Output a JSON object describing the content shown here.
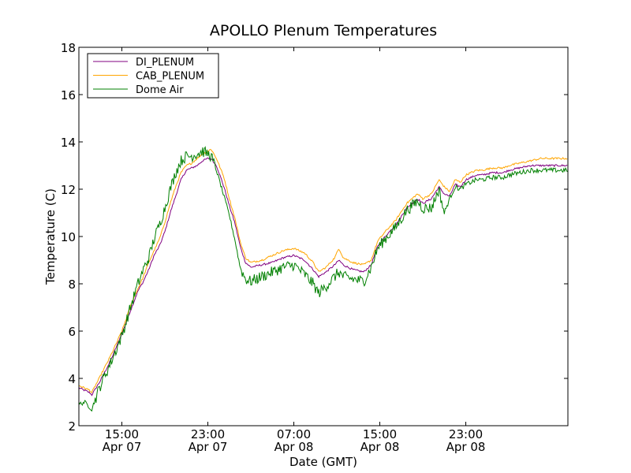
{
  "chart_data": {
    "type": "line",
    "title": "APOLLO Plenum Temperatures",
    "xlabel": "Date (GMT)",
    "ylabel": "Temperature (C)",
    "x_unit": "hours since 2014-04-07 11:00 GMT",
    "xlim": [
      0,
      45.5
    ],
    "ylim": [
      2,
      18
    ],
    "yticks": [
      2,
      4,
      6,
      8,
      10,
      12,
      14,
      16,
      18
    ],
    "xticks": [
      {
        "x": 4,
        "time": "15:00",
        "date": "Apr 07"
      },
      {
        "x": 12,
        "time": "23:00",
        "date": "Apr 07"
      },
      {
        "x": 20,
        "time": "07:00",
        "date": "Apr 08"
      },
      {
        "x": 28,
        "time": "15:00",
        "date": "Apr 08"
      },
      {
        "x": 36,
        "time": "23:00",
        "date": "Apr 08"
      }
    ],
    "grid": false,
    "legend_position": "top-left",
    "series": [
      {
        "name": "DI_PLENUM",
        "color": "#800080",
        "points": [
          [
            0,
            3.6
          ],
          [
            0.5,
            3.5
          ],
          [
            1,
            3.4
          ],
          [
            1.2,
            3.3
          ],
          [
            2,
            3.9
          ],
          [
            3,
            4.8
          ],
          [
            4,
            5.9
          ],
          [
            5,
            7.1
          ],
          [
            5.5,
            7.7
          ],
          [
            6,
            8.1
          ],
          [
            6.5,
            8.6
          ],
          [
            7,
            9.2
          ],
          [
            7.5,
            9.6
          ],
          [
            8,
            10.2
          ],
          [
            8.5,
            11.0
          ],
          [
            9,
            11.7
          ],
          [
            9.5,
            12.4
          ],
          [
            10,
            12.8
          ],
          [
            10.5,
            12.9
          ],
          [
            11,
            13.0
          ],
          [
            11.5,
            13.2
          ],
          [
            12,
            13.3
          ],
          [
            12.3,
            13.3
          ],
          [
            12.8,
            13.0
          ],
          [
            13.5,
            12.1
          ],
          [
            14,
            11.3
          ],
          [
            14.5,
            10.6
          ],
          [
            15,
            9.6
          ],
          [
            15.5,
            8.9
          ],
          [
            16,
            8.7
          ],
          [
            17,
            8.8
          ],
          [
            18,
            8.9
          ],
          [
            19,
            9.1
          ],
          [
            20,
            9.2
          ],
          [
            21,
            9.0
          ],
          [
            21.8,
            8.6
          ],
          [
            22.3,
            8.3
          ],
          [
            23,
            8.5
          ],
          [
            23.8,
            8.8
          ],
          [
            24.2,
            9.0
          ],
          [
            24.6,
            8.8
          ],
          [
            25.5,
            8.6
          ],
          [
            26.5,
            8.5
          ],
          [
            27.2,
            8.8
          ],
          [
            27.8,
            9.6
          ],
          [
            28.5,
            10.0
          ],
          [
            29.5,
            10.5
          ],
          [
            30.5,
            11.2
          ],
          [
            31.5,
            11.6
          ],
          [
            32,
            11.4
          ],
          [
            32.8,
            11.6
          ],
          [
            33.5,
            12.1
          ],
          [
            34,
            11.8
          ],
          [
            34.5,
            11.7
          ],
          [
            35,
            12.2
          ],
          [
            35.5,
            12.1
          ],
          [
            36,
            12.4
          ],
          [
            37,
            12.6
          ],
          [
            37.5,
            12.6
          ],
          [
            38.5,
            12.7
          ],
          [
            39,
            12.7
          ],
          [
            39.5,
            12.7
          ],
          [
            40,
            12.8
          ],
          [
            41,
            12.9
          ],
          [
            42,
            13.0
          ],
          [
            43,
            13.0
          ],
          [
            44,
            13.0
          ],
          [
            45,
            13.0
          ],
          [
            45.5,
            13.0
          ]
        ]
      },
      {
        "name": "CAB_PLENUM",
        "color": "#ffa500",
        "points": [
          [
            0,
            3.7
          ],
          [
            0.5,
            3.6
          ],
          [
            1,
            3.5
          ],
          [
            1.2,
            3.4
          ],
          [
            2,
            4.1
          ],
          [
            3,
            5.0
          ],
          [
            4,
            6.0
          ],
          [
            5,
            7.3
          ],
          [
            5.5,
            7.8
          ],
          [
            6,
            8.3
          ],
          [
            6.5,
            8.9
          ],
          [
            7,
            9.4
          ],
          [
            7.5,
            9.9
          ],
          [
            8,
            10.6
          ],
          [
            8.5,
            11.4
          ],
          [
            9,
            12.1
          ],
          [
            9.5,
            12.7
          ],
          [
            10,
            13.0
          ],
          [
            10.5,
            13.1
          ],
          [
            11,
            13.3
          ],
          [
            11.5,
            13.5
          ],
          [
            12,
            13.6
          ],
          [
            12.3,
            13.7
          ],
          [
            12.8,
            13.3
          ],
          [
            13.5,
            12.5
          ],
          [
            14,
            11.6
          ],
          [
            14.5,
            10.8
          ],
          [
            15,
            9.8
          ],
          [
            15.5,
            9.1
          ],
          [
            16,
            8.9
          ],
          [
            17,
            9.0
          ],
          [
            18,
            9.2
          ],
          [
            19,
            9.4
          ],
          [
            20,
            9.5
          ],
          [
            21,
            9.3
          ],
          [
            21.8,
            8.9
          ],
          [
            22.3,
            8.5
          ],
          [
            23,
            8.7
          ],
          [
            23.8,
            9.1
          ],
          [
            24.2,
            9.5
          ],
          [
            24.6,
            9.1
          ],
          [
            25.5,
            8.9
          ],
          [
            26.5,
            8.8
          ],
          [
            27.2,
            9.0
          ],
          [
            27.8,
            9.8
          ],
          [
            28.5,
            10.2
          ],
          [
            29.5,
            10.7
          ],
          [
            30.5,
            11.4
          ],
          [
            31.5,
            11.8
          ],
          [
            32,
            11.6
          ],
          [
            32.8,
            11.8
          ],
          [
            33.5,
            12.4
          ],
          [
            34,
            12.1
          ],
          [
            34.5,
            11.9
          ],
          [
            35,
            12.4
          ],
          [
            35.5,
            12.3
          ],
          [
            36,
            12.6
          ],
          [
            37,
            12.8
          ],
          [
            37.5,
            12.8
          ],
          [
            38.5,
            12.9
          ],
          [
            39,
            12.9
          ],
          [
            39.5,
            12.9
          ],
          [
            40,
            13.0
          ],
          [
            41,
            13.1
          ],
          [
            42,
            13.2
          ],
          [
            43,
            13.3
          ],
          [
            44,
            13.3
          ],
          [
            45,
            13.3
          ],
          [
            45.5,
            13.3
          ]
        ]
      },
      {
        "name": "Dome Air",
        "color": "#008000",
        "points": [
          [
            0,
            2.9
          ],
          [
            0.5,
            3.0
          ],
          [
            1,
            2.8
          ],
          [
            1.2,
            2.7
          ],
          [
            2,
            3.7
          ],
          [
            3,
            4.7
          ],
          [
            4,
            5.8
          ],
          [
            5,
            7.3
          ],
          [
            5.5,
            8.0
          ],
          [
            6,
            8.6
          ],
          [
            6.5,
            9.1
          ],
          [
            7,
            9.9
          ],
          [
            7.5,
            10.5
          ],
          [
            8,
            11.2
          ],
          [
            8.5,
            12.0
          ],
          [
            9,
            12.7
          ],
          [
            9.5,
            13.2
          ],
          [
            10,
            13.4
          ],
          [
            10.5,
            13.4
          ],
          [
            11,
            13.5
          ],
          [
            11.5,
            13.6
          ],
          [
            12,
            13.5
          ],
          [
            12.3,
            13.4
          ],
          [
            12.8,
            12.8
          ],
          [
            13.5,
            11.7
          ],
          [
            14,
            10.9
          ],
          [
            14.5,
            9.9
          ],
          [
            15,
            8.7
          ],
          [
            15.5,
            8.2
          ],
          [
            16,
            8.1
          ],
          [
            17,
            8.3
          ],
          [
            18,
            8.5
          ],
          [
            19,
            8.7
          ],
          [
            20,
            8.8
          ],
          [
            21,
            8.4
          ],
          [
            21.8,
            8.0
          ],
          [
            22.3,
            7.6
          ],
          [
            23,
            7.9
          ],
          [
            23.8,
            8.3
          ],
          [
            24.2,
            8.5
          ],
          [
            24.6,
            8.3
          ],
          [
            25.5,
            8.2
          ],
          [
            26.5,
            8.1
          ],
          [
            27.2,
            8.7
          ],
          [
            27.8,
            9.5
          ],
          [
            28.5,
            9.9
          ],
          [
            29.5,
            10.4
          ],
          [
            30.5,
            11.1
          ],
          [
            31.5,
            11.5
          ],
          [
            32,
            11.2
          ],
          [
            32.8,
            11.2
          ],
          [
            33.5,
            12.0
          ],
          [
            34,
            11.0
          ],
          [
            34.5,
            11.6
          ],
          [
            35,
            12.1
          ],
          [
            35.5,
            12.0
          ],
          [
            36,
            12.2
          ],
          [
            37,
            12.4
          ],
          [
            37.5,
            12.4
          ],
          [
            38.5,
            12.5
          ],
          [
            39,
            12.5
          ],
          [
            39.5,
            12.5
          ],
          [
            40,
            12.6
          ],
          [
            41,
            12.7
          ],
          [
            42,
            12.8
          ],
          [
            43,
            12.8
          ],
          [
            44,
            12.8
          ],
          [
            45,
            12.8
          ],
          [
            45.5,
            12.8
          ]
        ]
      }
    ]
  }
}
